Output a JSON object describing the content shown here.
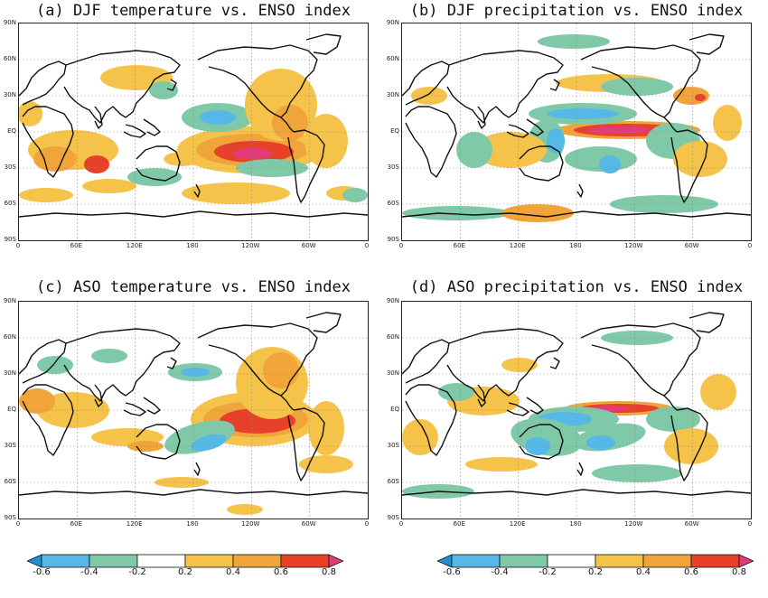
{
  "colors": {
    "c_n8": "#1f8fd6",
    "c_n6": "#56b8e6",
    "c_n4": "#7fc9a8",
    "c_n2": "#ffffff",
    "c_p2": "#f6c34a",
    "c_p4": "#f0a43a",
    "c_p6": "#e8412a",
    "c_p8": "#e23a7a",
    "coast": "#111111",
    "grid": "#888888"
  },
  "lat_labels": [
    "90N",
    "60N",
    "30N",
    "EQ",
    "30S",
    "60S",
    "90S"
  ],
  "lon_labels": [
    "0",
    "60E",
    "120E",
    "180",
    "120W",
    "60W",
    "0"
  ],
  "colorbar_labels": [
    "-0.6",
    "-0.4",
    "-0.2",
    "0.2",
    "0.4",
    "0.6",
    "0.8"
  ],
  "panels": [
    {
      "id": "a",
      "title": "(a) DJF temperature vs. ENSO index"
    },
    {
      "id": "b",
      "title": "(b) DJF precipitation vs. ENSO index"
    },
    {
      "id": "c",
      "title": "(c) ASO temperature vs. ENSO index"
    },
    {
      "id": "d",
      "title": "(d) ASO precipitation vs. ENSO index"
    }
  ]
}
